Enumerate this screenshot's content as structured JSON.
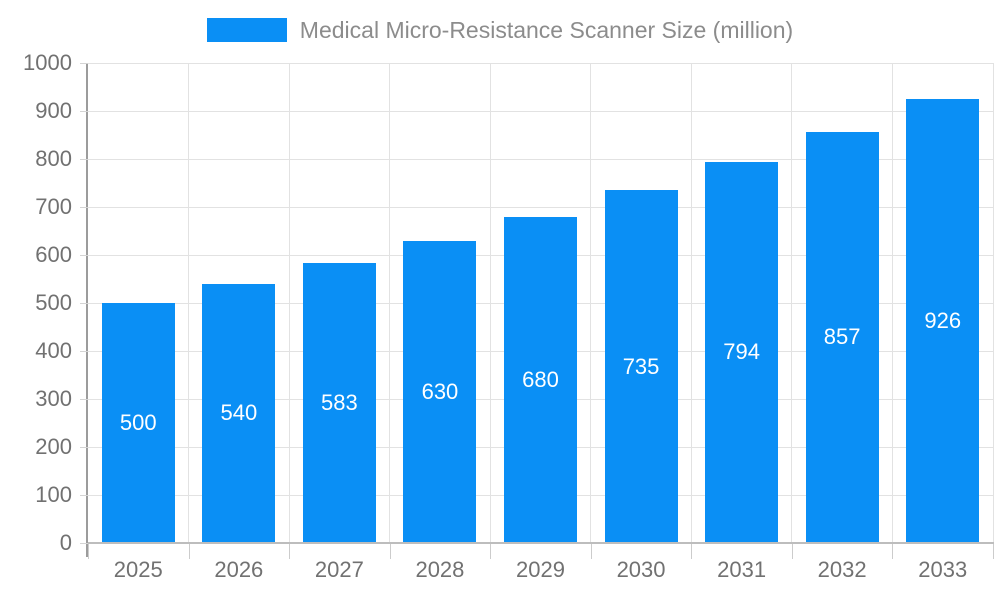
{
  "legend": {
    "label": "Medical Micro-Resistance Scanner Size (million)",
    "swatch_color": "#0a8ff5"
  },
  "chart_data": {
    "type": "bar",
    "title": "Medical Micro-Resistance Scanner Size (million)",
    "categories": [
      "2025",
      "2026",
      "2027",
      "2028",
      "2029",
      "2030",
      "2031",
      "2032",
      "2033"
    ],
    "values": [
      500,
      540,
      583,
      630,
      680,
      735,
      794,
      857,
      926
    ],
    "series": [
      {
        "name": "Medical Micro-Resistance Scanner Size (million)",
        "values": [
          500,
          540,
          583,
          630,
          680,
          735,
          794,
          857,
          926
        ]
      }
    ],
    "xlabel": "",
    "ylabel": "",
    "ylim": [
      0,
      1000
    ],
    "yticks": [
      0,
      100,
      200,
      300,
      400,
      500,
      600,
      700,
      800,
      900,
      1000
    ],
    "grid": "on",
    "legend_position": "top-center",
    "bar_color": "#0a8ff5",
    "data_label_color": "#ffffff",
    "data_label_position": "inside-center"
  }
}
